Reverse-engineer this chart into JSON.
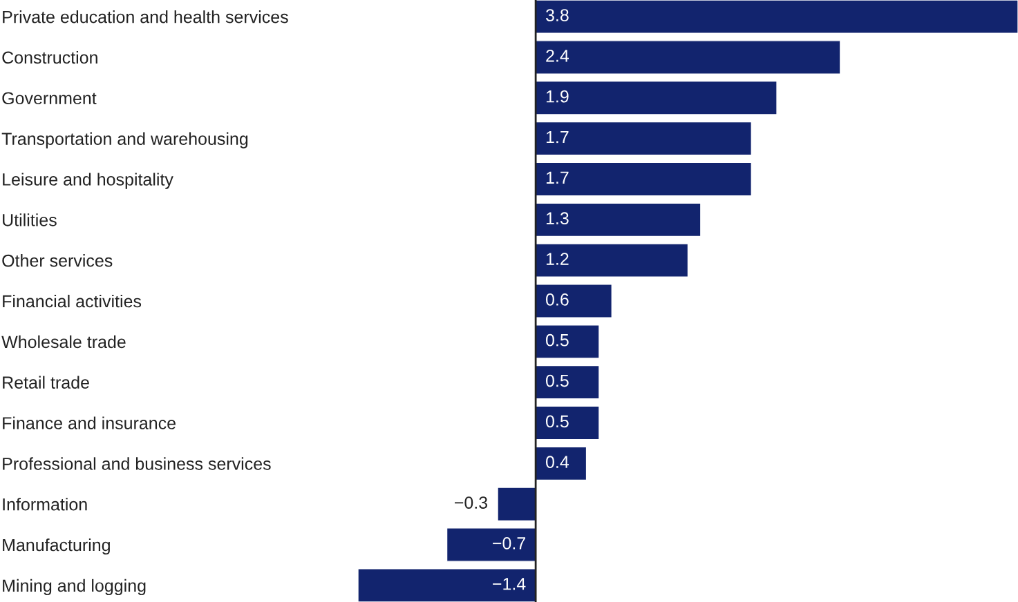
{
  "chart_data": {
    "type": "bar",
    "orientation": "horizontal",
    "data_labels": true,
    "grid": false,
    "legend": false,
    "tick_labels": "y",
    "categories": [
      "Private education and health services",
      "Construction",
      "Government",
      "Transportation and warehousing",
      "Leisure and hospitality",
      "Utilities",
      "Other services",
      "Financial activities",
      "Wholesale trade",
      "Retail trade",
      "Finance and insurance",
      "Professional and business services",
      "Information",
      "Manufacturing",
      "Mining and logging"
    ],
    "series": [
      {
        "color": "#12246e",
        "values": [
          3.8,
          2.4,
          1.9,
          1.7,
          1.7,
          1.3,
          1.2,
          0.6,
          0.5,
          0.5,
          0.5,
          0.4,
          -0.3,
          -0.7,
          -1.4
        ]
      }
    ]
  }
}
